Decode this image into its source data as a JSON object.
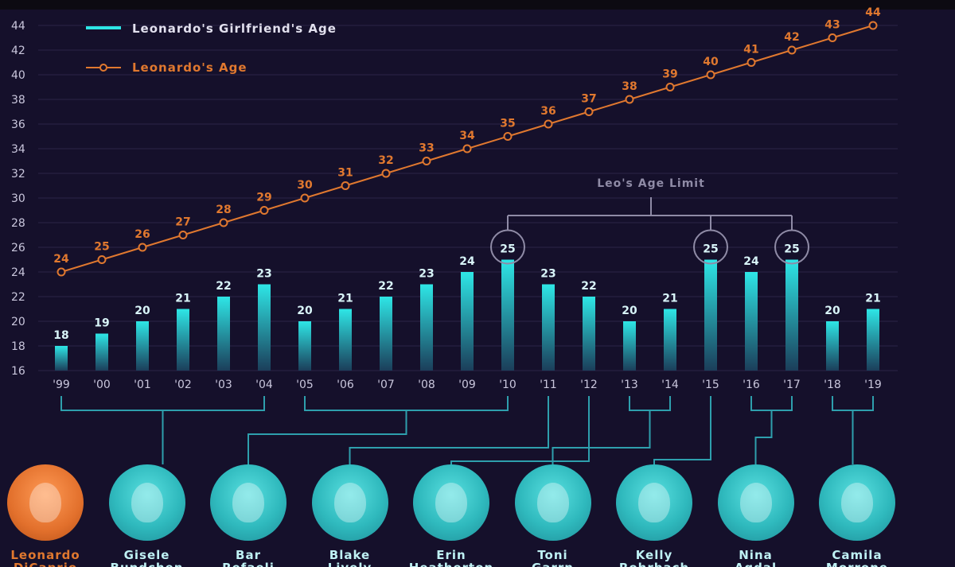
{
  "legend": {
    "girlfriend_label": "Leonardo's Girlfriend's Age",
    "leo_label": "Leonardo's Age"
  },
  "annotation": "Leo's Age Limit",
  "colors": {
    "background": "#15102b",
    "bar_top": "#2ee6e6",
    "bar_bottom": "#1b3e5a",
    "leo_line": "#e0782f",
    "connector": "#2e9fad"
  },
  "chart_data": {
    "type": "bar",
    "categories": [
      "'99",
      "'00",
      "'01",
      "'02",
      "'03",
      "'04",
      "'05",
      "'06",
      "'07",
      "'08",
      "'09",
      "'10",
      "'11",
      "'12",
      "'13",
      "'14",
      "'15",
      "'16",
      "'17",
      "'18",
      "'19"
    ],
    "ylim": [
      16,
      44
    ],
    "yticks": [
      16,
      18,
      20,
      22,
      24,
      26,
      28,
      30,
      32,
      34,
      36,
      38,
      40,
      42,
      44
    ],
    "grid": true,
    "legend_position": "top-left",
    "series": [
      {
        "name": "Leonardo's Girlfriend's Age",
        "type": "bar",
        "values": [
          18,
          19,
          20,
          21,
          22,
          23,
          20,
          21,
          22,
          23,
          24,
          25,
          23,
          22,
          20,
          21,
          25,
          24,
          25,
          20,
          21
        ]
      },
      {
        "name": "Leonardo's Age",
        "type": "line",
        "values": [
          24,
          25,
          26,
          27,
          28,
          29,
          30,
          31,
          32,
          33,
          34,
          35,
          36,
          37,
          38,
          39,
          40,
          41,
          42,
          43,
          44
        ]
      }
    ],
    "highlighted_bars": [
      "'10",
      "'15",
      "'17"
    ]
  },
  "people": [
    {
      "name": "Leonardo\nDiCaprio",
      "years": []
    },
    {
      "name": "Gisele\nBundchen",
      "years": [
        "'99",
        "'04"
      ]
    },
    {
      "name": "Bar\nRefaeli",
      "years": [
        "'05",
        "'10"
      ]
    },
    {
      "name": "Blake\nLively",
      "years": [
        "'11"
      ]
    },
    {
      "name": "Erin\nHeatherton",
      "years": [
        "'12"
      ]
    },
    {
      "name": "Toni\nGarrn",
      "years": [
        "'13",
        "'14"
      ]
    },
    {
      "name": "Kelly\nRohrbach",
      "years": [
        "'15"
      ]
    },
    {
      "name": "Nina\nAgdal",
      "years": [
        "'16",
        "'17"
      ]
    },
    {
      "name": "Camila\nMorrone",
      "years": [
        "'18",
        "'19"
      ]
    }
  ]
}
